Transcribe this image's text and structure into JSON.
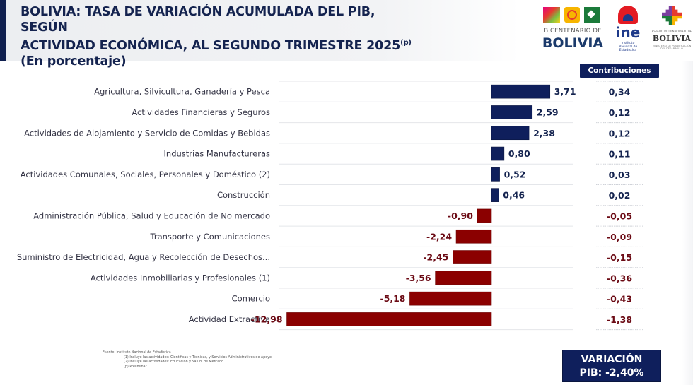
{
  "header": {
    "title_line1": "BOLIVIA: TASA DE VARIACIÓN ACUMULADA DEL PIB, SEGÚN",
    "title_line2": "ACTIVIDAD ECONÓMICA, AL SEGUNDO TRIMESTRE 2025",
    "title_superscript": "(p)",
    "subtitle": "(En porcentaje)"
  },
  "logos": {
    "bicentenario_small": "BICENTENARIO DE",
    "bicentenario_big": "BOLIVIA",
    "ine_text": "ine",
    "ine_sub": "Instituto Nacional de Estadística",
    "estado_small": "ESTADO PLURINACIONAL DE",
    "estado_big": "BOLIVIA",
    "estado_foot": "MINISTERIO DE PLANIFICACIÓN DEL DESARROLLO"
  },
  "contributions_header": "Contribuciones",
  "chart_data": {
    "type": "bar",
    "orientation": "horizontal",
    "title": "BOLIVIA: TASA DE VARIACIÓN ACUMULADA DEL PIB, SEGÚN ACTIVIDAD ECONÓMICA, AL SEGUNDO TRIMESTRE 2025(p)",
    "subtitle": "(En porcentaje)",
    "xlabel": "",
    "ylabel": "",
    "grid": true,
    "legend": "none",
    "xlim": [
      -12.98,
      3.71
    ],
    "positive_color": "#0f1f5c",
    "negative_color": "#8b0000",
    "categories": [
      "Agricultura, Silvicultura, Ganadería y Pesca",
      "Actividades Financieras y Seguros",
      "Actividades de Alojamiento y Servicio de Comidas y Bebidas",
      "Industrias Manufactureras",
      "Actividades Comunales, Sociales, Personales y Doméstico (2)",
      "Construcción",
      "Administración Pública, Salud y Educación de No mercado",
      "Transporte y Comunicaciones",
      "Suministro de Electricidad, Agua y Recolección de Desechos...",
      "Actividades Inmobiliarias y Profesionales (1)",
      "Comercio",
      "Actividad Extractiva"
    ],
    "values": [
      3.71,
      2.59,
      2.38,
      0.8,
      0.52,
      0.46,
      -0.9,
      -2.24,
      -2.45,
      -3.56,
      -5.18,
      -12.98
    ],
    "value_labels": [
      "3,71",
      "2,59",
      "2,38",
      "0,80",
      "0,52",
      "0,46",
      "-0,90",
      "-2,24",
      "-2,45",
      "-3,56",
      "-5,18",
      "-12,98"
    ],
    "contributions": [
      0.34,
      0.12,
      0.12,
      0.11,
      0.03,
      0.02,
      -0.05,
      -0.09,
      -0.15,
      -0.36,
      -0.43,
      -1.38
    ],
    "contribution_labels": [
      "0,34",
      "0,12",
      "0,12",
      "0,11",
      "0,03",
      "0,02",
      "-0,05",
      "-0,09",
      "-0,15",
      "-0,36",
      "-0,43",
      "-1,38"
    ]
  },
  "footnotes": {
    "source": "Fuente: Instituto Nacional de Estadística",
    "note1": "(1)  Incluye las actividades: Científicas y Técnicas, y Servicios Administrativos de Apoyo",
    "note2": "(2)  Incluye las actividades: Educación y Salud, de Mercado",
    "note3": "(p) Preliminar"
  },
  "summary": {
    "line1": "VARIACIÓN",
    "line2": "PIB: -2,40%"
  }
}
